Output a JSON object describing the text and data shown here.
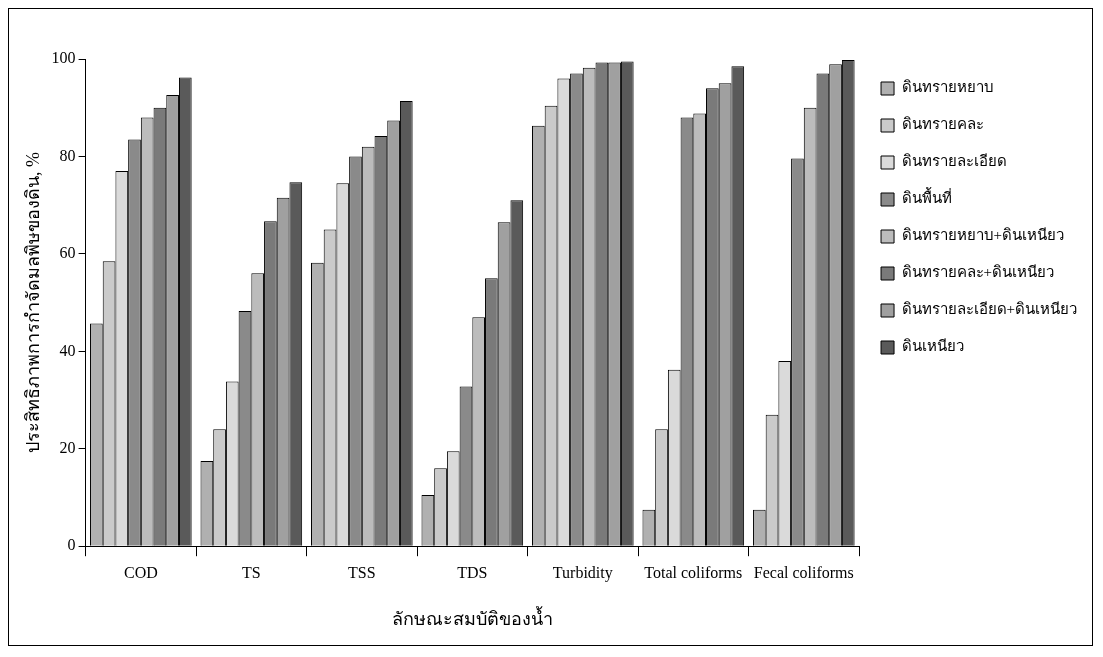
{
  "chart_data": {
    "type": "bar",
    "xlabel": "ลักษณะสมบัติของน้ำ",
    "ylabel": "ประสิทธิภาพการกำจัดมลพิษของดิน, %",
    "categories": [
      "COD",
      "TS",
      "TSS",
      "TDS",
      "Turbidity",
      "Total coliforms",
      "Fecal coliforms"
    ],
    "series": [
      {
        "name": "ดินทรายหยาบ",
        "color": "#b0b0b0",
        "values": [
          45.7,
          17.5,
          58.2,
          10.5,
          86.3,
          7.5,
          7.5
        ]
      },
      {
        "name": "ดินทรายคละ",
        "color": "#cacaca",
        "values": [
          58.5,
          24,
          65,
          16,
          90.4,
          24,
          27
        ]
      },
      {
        "name": "ดินทรายละเอียด",
        "color": "#dadada",
        "values": [
          77,
          33.8,
          74.5,
          19.5,
          96,
          36.2,
          38
        ]
      },
      {
        "name": "ดินพื้นที่",
        "color": "#8a8a8a",
        "values": [
          83.5,
          48.3,
          80,
          32.8,
          97,
          88,
          79.6
        ]
      },
      {
        "name": "ดินทรายหยาบ+ดินเหนียว",
        "color": "#bcbcbc",
        "values": [
          88,
          56,
          82,
          47,
          98.2,
          88.8,
          90
        ]
      },
      {
        "name": "ดินทรายคละ+ดินเหนียว",
        "color": "#7a7a7a",
        "values": [
          90,
          66.7,
          84.2,
          55,
          99.3,
          94,
          97
        ]
      },
      {
        "name": "ดินทรายละเอียด+ดินเหนียว",
        "color": "#a0a0a0",
        "values": [
          92.6,
          71.5,
          87.4,
          66.5,
          99.3,
          95,
          98.9
        ]
      },
      {
        "name": "ดินเหนียว",
        "color": "#5a5a5a",
        "values": [
          96.2,
          74.7,
          91.4,
          71,
          99.5,
          98.5,
          99.8
        ]
      }
    ],
    "ylim": [
      0,
      100
    ],
    "yticks": [
      0,
      20,
      40,
      60,
      80,
      100
    ],
    "grid": false,
    "legend": "right"
  }
}
